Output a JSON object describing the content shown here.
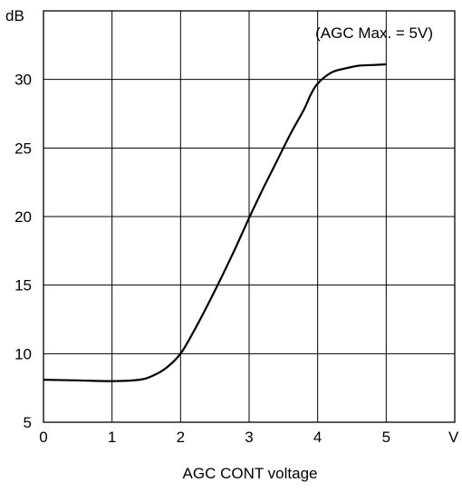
{
  "chart_data": {
    "type": "line",
    "title": "",
    "xlabel": "AGC CONT voltage",
    "ylabel": "",
    "x_unit": "V",
    "y_unit": "dB",
    "annotation": "(AGC Max. = 5V)",
    "xlim": [
      0,
      6
    ],
    "ylim": [
      5,
      35
    ],
    "x_ticks": [
      0,
      1,
      2,
      3,
      4,
      5
    ],
    "y_ticks": [
      5,
      10,
      15,
      20,
      25,
      30
    ],
    "grid": true,
    "series": [
      {
        "x": [
          0,
          0.5,
          1.0,
          1.4,
          1.6,
          1.8,
          2.0,
          2.2,
          2.4,
          2.6,
          2.8,
          3.0,
          3.2,
          3.4,
          3.6,
          3.8,
          3.9,
          4.0,
          4.2,
          4.4,
          4.6,
          4.8,
          5.0
        ],
        "y": [
          8.1,
          8.05,
          8.0,
          8.1,
          8.4,
          9.0,
          10.0,
          11.7,
          13.6,
          15.6,
          17.7,
          19.9,
          22.0,
          24.0,
          26.0,
          27.8,
          28.9,
          29.7,
          30.5,
          30.8,
          31.0,
          31.05,
          31.1
        ],
        "color": "#000000"
      }
    ]
  }
}
